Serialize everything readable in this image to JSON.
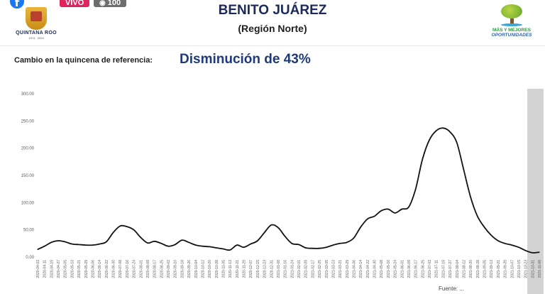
{
  "overlay": {
    "live_label": "VIVO",
    "viewers_count": "100"
  },
  "header": {
    "logo_left_name": "QUINTANA ROO",
    "logo_left_years": "1974 · 2024",
    "title": "BENITO JUÁREZ",
    "subtitle": "(Región Norte)",
    "logo_right_line1": "MÁS Y MEJORES",
    "logo_right_line2": "OPORTUNIDADES"
  },
  "summary": {
    "label": "Cambio en la quincena de referencia:",
    "value": "Disminución de 43%"
  },
  "footer": {
    "note": "Fuente: ..."
  },
  "colors": {
    "line": "#111111",
    "highlight": "#d3d3d3",
    "axis_label": "#5a5a5a",
    "title": "#1b2a5c",
    "value": "#1e3a7a"
  },
  "chart_data": {
    "type": "line",
    "title": "",
    "xlabel": "",
    "ylabel": "",
    "ylim": [
      0,
      300
    ],
    "yticks": [
      "0.00",
      "50.00",
      "100.00",
      "150.00",
      "200.00",
      "250.00",
      "300.00"
    ],
    "xlim": [
      "2020-04-03",
      "2021-11-08"
    ],
    "highlight_range": [
      "2021-10-25",
      "2021-11-08"
    ],
    "grid": false,
    "xtick_labels": [
      "2020-04-03",
      "2020-04-11",
      "2020-04-19",
      "2020-04-27",
      "2020-05-05",
      "2020-05-13",
      "2020-05-21",
      "2020-05-29",
      "2020-06-06",
      "2020-06-14",
      "2020-06-22",
      "2020-06-30",
      "2020-07-08",
      "2020-07-16",
      "2020-07-24",
      "2020-08-01",
      "2020-08-09",
      "2020-08-17",
      "2020-08-25",
      "2020-09-02",
      "2020-09-10",
      "2020-09-18",
      "2020-09-26",
      "2020-10-04",
      "2020-10-12",
      "2020-10-20",
      "2020-10-28",
      "2020-11-05",
      "2020-11-13",
      "2020-11-21",
      "2020-11-29",
      "2020-12-07",
      "2020-12-15",
      "2020-12-23",
      "2020-12-31",
      "2021-01-08",
      "2021-01-16",
      "2021-01-24",
      "2021-02-01",
      "2021-02-09",
      "2021-02-17",
      "2021-02-25",
      "2021-03-05",
      "2021-03-13",
      "2021-03-21",
      "2021-03-29",
      "2021-04-06",
      "2021-04-14",
      "2021-04-22",
      "2021-04-30",
      "2021-05-08",
      "2021-05-16",
      "2021-05-24",
      "2021-06-01",
      "2021-06-09",
      "2021-06-17",
      "2021-06-25",
      "2021-07-03",
      "2021-07-11",
      "2021-07-19",
      "2021-07-27",
      "2021-08-04",
      "2021-08-12",
      "2021-08-20",
      "2021-08-28",
      "2021-09-05",
      "2021-09-13",
      "2021-09-21",
      "2021-09-29",
      "2021-10-07",
      "2021-10-15",
      "2021-10-23",
      "2021-10-31",
      "2021-11-08"
    ],
    "series": [
      {
        "name": "",
        "x": [
          "2020-04-03",
          "2020-04-11",
          "2020-04-19",
          "2020-04-27",
          "2020-05-05",
          "2020-05-13",
          "2020-05-21",
          "2020-05-29",
          "2020-06-06",
          "2020-06-14",
          "2020-06-22",
          "2020-06-30",
          "2020-07-08",
          "2020-07-16",
          "2020-07-24",
          "2020-08-01",
          "2020-08-09",
          "2020-08-17",
          "2020-08-25",
          "2020-09-02",
          "2020-09-10",
          "2020-09-18",
          "2020-09-26",
          "2020-10-04",
          "2020-10-12",
          "2020-10-20",
          "2020-10-28",
          "2020-11-05",
          "2020-11-13",
          "2020-11-21",
          "2020-11-29",
          "2020-12-07",
          "2020-12-15",
          "2020-12-23",
          "2020-12-31",
          "2021-01-08",
          "2021-01-16",
          "2021-01-24",
          "2021-02-01",
          "2021-02-09",
          "2021-02-17",
          "2021-02-25",
          "2021-03-05",
          "2021-03-13",
          "2021-03-21",
          "2021-03-29",
          "2021-04-06",
          "2021-04-14",
          "2021-04-22",
          "2021-04-30",
          "2021-05-08",
          "2021-05-16",
          "2021-05-24",
          "2021-06-01",
          "2021-06-09",
          "2021-06-17",
          "2021-06-25",
          "2021-07-03",
          "2021-07-11",
          "2021-07-19",
          "2021-07-27",
          "2021-08-04",
          "2021-08-12",
          "2021-08-20",
          "2021-08-28",
          "2021-09-05",
          "2021-09-13",
          "2021-09-21",
          "2021-09-29",
          "2021-10-07",
          "2021-10-15",
          "2021-10-23",
          "2021-10-31",
          "2021-11-08"
        ],
        "values": [
          14,
          20,
          27,
          30,
          28,
          24,
          23,
          22,
          22,
          24,
          28,
          45,
          57,
          56,
          50,
          36,
          26,
          29,
          25,
          20,
          23,
          31,
          27,
          22,
          20,
          19,
          17,
          15,
          13,
          22,
          18,
          24,
          30,
          45,
          59,
          54,
          38,
          25,
          23,
          17,
          16,
          16,
          18,
          22,
          25,
          27,
          35,
          55,
          70,
          75,
          85,
          88,
          81,
          88,
          92,
          125,
          180,
          215,
          232,
          237,
          230,
          210,
          160,
          110,
          75,
          55,
          40,
          30,
          25,
          22,
          18,
          12,
          8,
          9
        ]
      }
    ]
  }
}
